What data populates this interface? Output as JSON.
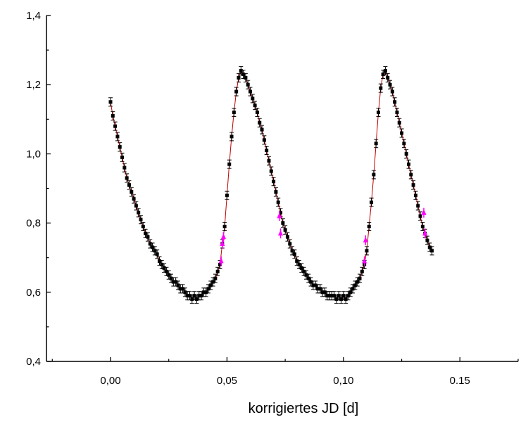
{
  "chart_data": {
    "type": "scatter",
    "title": "",
    "xlabel": "korrigiertes JD [d]",
    "ylabel": "",
    "xlim": [
      -0.0275,
      0.175
    ],
    "ylim": [
      0.4,
      1.4
    ],
    "x_ticks": [
      0.0,
      0.05,
      0.1,
      0.15
    ],
    "x_tick_labels": [
      "0,00",
      "0,05",
      "0,10",
      "0.15"
    ],
    "y_ticks": [
      0.4,
      0.6,
      0.8,
      1.0,
      1.2,
      1.4
    ],
    "y_tick_labels": [
      "0,4",
      "0,6",
      "0,8",
      "1,0",
      "1,2",
      "1,4"
    ],
    "grid": false,
    "legend": "none",
    "colors": {
      "points": "#000000",
      "fit_line": "#c00000",
      "highlight": "#ff00ff"
    },
    "series": [
      {
        "values_xy": [
          [
            0.0,
            1.15
          ],
          [
            0.001,
            1.11
          ],
          [
            0.002,
            1.08
          ],
          [
            0.003,
            1.05
          ],
          [
            0.004,
            1.02
          ],
          [
            0.005,
            0.99
          ],
          [
            0.006,
            0.96
          ],
          [
            0.007,
            0.93
          ],
          [
            0.008,
            0.91
          ],
          [
            0.009,
            0.89
          ],
          [
            0.01,
            0.87
          ],
          [
            0.011,
            0.85
          ],
          [
            0.012,
            0.83
          ],
          [
            0.013,
            0.81
          ],
          [
            0.014,
            0.79
          ],
          [
            0.015,
            0.77
          ],
          [
            0.016,
            0.76
          ],
          [
            0.017,
            0.74
          ],
          [
            0.018,
            0.73
          ],
          [
            0.019,
            0.72
          ],
          [
            0.02,
            0.71
          ],
          [
            0.021,
            0.69
          ],
          [
            0.022,
            0.68
          ],
          [
            0.023,
            0.67
          ],
          [
            0.024,
            0.66
          ],
          [
            0.025,
            0.65
          ],
          [
            0.026,
            0.64
          ],
          [
            0.027,
            0.63
          ],
          [
            0.028,
            0.63
          ],
          [
            0.029,
            0.62
          ],
          [
            0.03,
            0.61
          ],
          [
            0.031,
            0.61
          ],
          [
            0.032,
            0.6
          ],
          [
            0.033,
            0.59
          ],
          [
            0.034,
            0.59
          ],
          [
            0.035,
            0.58
          ],
          [
            0.036,
            0.59
          ],
          [
            0.037,
            0.58
          ],
          [
            0.038,
            0.59
          ],
          [
            0.039,
            0.59
          ],
          [
            0.04,
            0.6
          ],
          [
            0.041,
            0.6
          ],
          [
            0.042,
            0.61
          ],
          [
            0.043,
            0.62
          ],
          [
            0.044,
            0.63
          ],
          [
            0.045,
            0.64
          ],
          [
            0.046,
            0.66
          ],
          [
            0.047,
            0.68
          ],
          [
            0.048,
            0.74
          ],
          [
            0.049,
            0.79
          ],
          [
            0.05,
            0.88
          ],
          [
            0.051,
            0.97
          ],
          [
            0.052,
            1.05
          ],
          [
            0.053,
            1.12
          ],
          [
            0.054,
            1.18
          ],
          [
            0.055,
            1.22
          ],
          [
            0.056,
            1.24
          ],
          [
            0.057,
            1.23
          ],
          [
            0.058,
            1.22
          ],
          [
            0.059,
            1.2
          ],
          [
            0.06,
            1.18
          ],
          [
            0.061,
            1.16
          ],
          [
            0.062,
            1.14
          ],
          [
            0.063,
            1.12
          ],
          [
            0.064,
            1.09
          ],
          [
            0.065,
            1.07
          ],
          [
            0.066,
            1.04
          ],
          [
            0.067,
            1.01
          ],
          [
            0.068,
            0.98
          ],
          [
            0.069,
            0.95
          ],
          [
            0.07,
            0.92
          ],
          [
            0.071,
            0.89
          ],
          [
            0.072,
            0.86
          ],
          [
            0.073,
            0.83
          ],
          [
            0.074,
            0.8
          ],
          [
            0.075,
            0.78
          ],
          [
            0.076,
            0.76
          ],
          [
            0.077,
            0.74
          ],
          [
            0.078,
            0.72
          ],
          [
            0.079,
            0.71
          ],
          [
            0.08,
            0.69
          ],
          [
            0.081,
            0.68
          ],
          [
            0.082,
            0.67
          ],
          [
            0.083,
            0.66
          ],
          [
            0.084,
            0.65
          ],
          [
            0.085,
            0.64
          ],
          [
            0.086,
            0.63
          ],
          [
            0.087,
            0.62
          ],
          [
            0.088,
            0.62
          ],
          [
            0.089,
            0.61
          ],
          [
            0.09,
            0.61
          ],
          [
            0.091,
            0.6
          ],
          [
            0.092,
            0.6
          ],
          [
            0.093,
            0.59
          ],
          [
            0.094,
            0.59
          ],
          [
            0.095,
            0.59
          ],
          [
            0.096,
            0.59
          ],
          [
            0.097,
            0.58
          ],
          [
            0.098,
            0.59
          ],
          [
            0.099,
            0.58
          ],
          [
            0.1,
            0.59
          ],
          [
            0.101,
            0.58
          ],
          [
            0.102,
            0.59
          ],
          [
            0.103,
            0.6
          ],
          [
            0.104,
            0.61
          ],
          [
            0.105,
            0.62
          ],
          [
            0.106,
            0.63
          ],
          [
            0.107,
            0.64
          ],
          [
            0.108,
            0.66
          ],
          [
            0.109,
            0.68
          ],
          [
            0.11,
            0.72
          ],
          [
            0.111,
            0.79
          ],
          [
            0.112,
            0.86
          ],
          [
            0.113,
            0.94
          ],
          [
            0.114,
            1.03
          ],
          [
            0.115,
            1.12
          ],
          [
            0.116,
            1.19
          ],
          [
            0.117,
            1.23
          ],
          [
            0.118,
            1.24
          ],
          [
            0.119,
            1.22
          ],
          [
            0.12,
            1.2
          ],
          [
            0.121,
            1.18
          ],
          [
            0.122,
            1.15
          ],
          [
            0.123,
            1.12
          ],
          [
            0.124,
            1.09
          ],
          [
            0.125,
            1.06
          ],
          [
            0.126,
            1.03
          ],
          [
            0.127,
            1.0
          ],
          [
            0.128,
            0.97
          ],
          [
            0.129,
            0.94
          ],
          [
            0.13,
            0.91
          ],
          [
            0.131,
            0.88
          ],
          [
            0.132,
            0.85
          ],
          [
            0.133,
            0.82
          ],
          [
            0.134,
            0.79
          ],
          [
            0.135,
            0.77
          ],
          [
            0.136,
            0.75
          ],
          [
            0.137,
            0.73
          ],
          [
            0.138,
            0.72
          ]
        ]
      }
    ],
    "highlighted_points": [
      [
        0.0475,
        0.69
      ],
      [
        0.048,
        0.74
      ],
      [
        0.0485,
        0.76
      ],
      [
        0.0725,
        0.82
      ],
      [
        0.073,
        0.77
      ],
      [
        0.109,
        0.69
      ],
      [
        0.1095,
        0.75
      ],
      [
        0.1345,
        0.83
      ],
      [
        0.135,
        0.77
      ]
    ]
  }
}
